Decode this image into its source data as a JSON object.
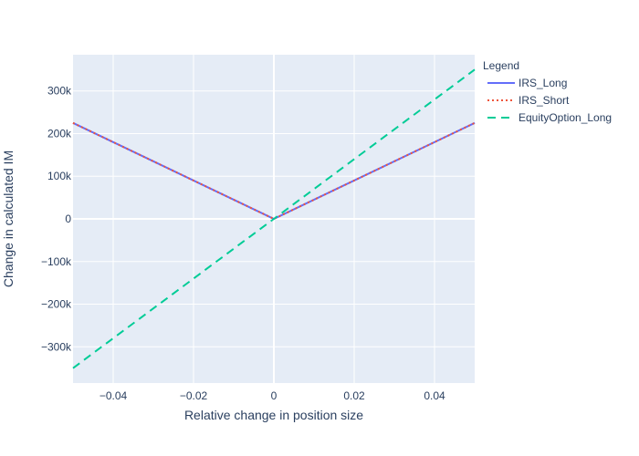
{
  "chart_data": {
    "type": "line",
    "title": "",
    "xlabel": "Relative change in position size",
    "ylabel": "Change in calculated IM",
    "xlim": [
      -0.05,
      0.05
    ],
    "ylim": [
      -385000,
      385000
    ],
    "x_ticks": [
      -0.04,
      -0.02,
      0,
      0.02,
      0.04
    ],
    "x_tick_labels": [
      "−0.04",
      "−0.02",
      "0",
      "0.02",
      "0.04"
    ],
    "y_ticks": [
      -300000,
      -200000,
      -100000,
      0,
      100000,
      200000,
      300000
    ],
    "y_tick_labels": [
      "−300k",
      "−200k",
      "−100k",
      "0",
      "100k",
      "200k",
      "300k"
    ],
    "grid": true,
    "legend_title": "Legend",
    "legend_position": "right",
    "series": [
      {
        "name": "IRS_Long",
        "color": "#636efa",
        "dash": "solid",
        "x": [
          -0.05,
          0,
          0.05
        ],
        "y": [
          225000,
          0,
          225000
        ]
      },
      {
        "name": "IRS_Short",
        "color": "#ef553b",
        "dash": "dot",
        "x": [
          -0.05,
          0,
          0.05
        ],
        "y": [
          225000,
          0,
          225000
        ]
      },
      {
        "name": "EquityOption_Long",
        "color": "#00cc96",
        "dash": "dash",
        "x": [
          -0.05,
          0,
          0.05
        ],
        "y": [
          -350000,
          0,
          350000
        ]
      }
    ]
  }
}
